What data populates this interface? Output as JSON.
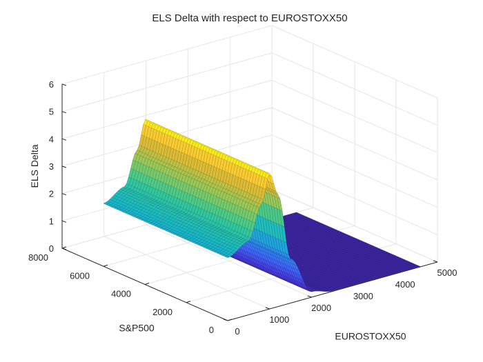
{
  "chart_data": {
    "type": "surface",
    "title": "ELS Delta with respect to EUROSTOXX50",
    "xlabel": "EUROSTOXX50",
    "ylabel": "S&P500",
    "zlabel": "ELS Delta",
    "xlim": [
      0,
      5000
    ],
    "ylim": [
      0,
      8000
    ],
    "zlim": [
      0,
      6
    ],
    "xticks": [
      0,
      1000,
      2000,
      3000,
      4000,
      5000
    ],
    "yticks": [
      0,
      2000,
      4000,
      6000,
      8000
    ],
    "zticks": [
      0,
      1,
      2,
      3,
      4,
      5,
      6
    ],
    "grid": true,
    "colormap": "parula",
    "surface": {
      "x_range": [
        0,
        4600
      ],
      "y_range": [
        0,
        6000
      ],
      "description_points": [
        {
          "eurostoxx50": 0,
          "delta": 2.3
        },
        {
          "eurostoxx50": 500,
          "delta": 2.7
        },
        {
          "eurostoxx50": 800,
          "delta": 3.9
        },
        {
          "eurostoxx50": 1000,
          "delta": 4.95
        },
        {
          "eurostoxx50": 1200,
          "delta": 4.1
        },
        {
          "eurostoxx50": 1500,
          "delta": 1.6
        },
        {
          "eurostoxx50": 2000,
          "delta": 0.2
        },
        {
          "eurostoxx50": 2500,
          "delta": 0.02
        },
        {
          "eurostoxx50": 4600,
          "delta": 0
        }
      ]
    }
  }
}
